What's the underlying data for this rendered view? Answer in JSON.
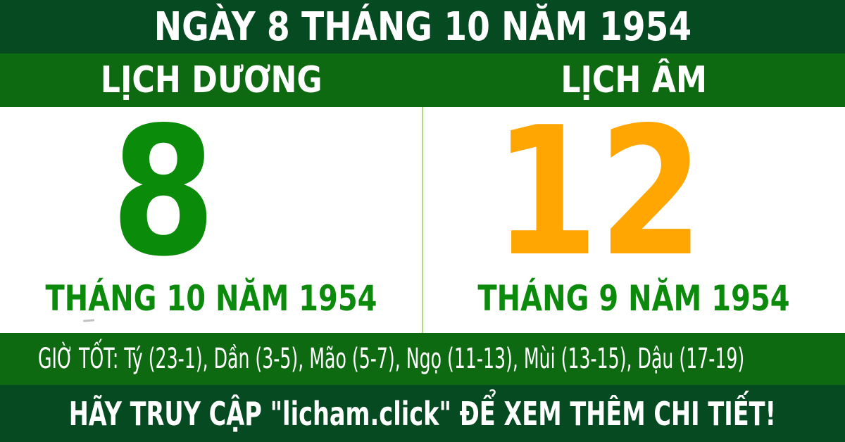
{
  "header": {
    "title": "NGÀY 8 THÁNG 10 NĂM 1954"
  },
  "calendar_bar": {
    "solar_label": "LỊCH DƯƠNG",
    "lunar_label": "LỊCH ÂM"
  },
  "solar": {
    "day": "8",
    "month_year": "THÁNG 10 NĂM 1954"
  },
  "lunar": {
    "day": "12",
    "month_year": "THÁNG 9 NĂM 1954"
  },
  "good_hours": {
    "text": "GIỜ TỐT: Tý (23-1), Dần (3-5), Mão (5-7), Ngọ (11-13), Mùi (13-15), Dậu (17-19)"
  },
  "footer": {
    "cta": "HÃY TRUY CẬP \"licham.click\" ĐỂ XEM THÊM CHI TIẾT!"
  },
  "colors": {
    "dark_green": "#054a20",
    "band_green": "#0e6a11",
    "solar_day_green": "#0a8c0a",
    "month_label_green": "#0c8a0c",
    "lunar_day_orange": "#ffa602",
    "divider_light_green": "#b2da7e",
    "text_white": "#ffffff",
    "panel_white": "#ffffff"
  }
}
